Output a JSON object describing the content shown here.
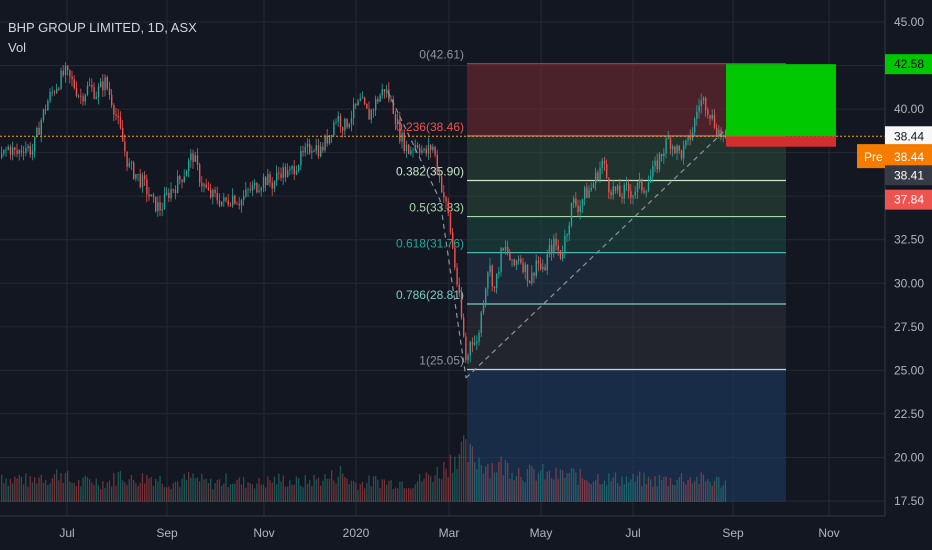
{
  "header": {
    "title": "BHP GROUP LIMITED, 1D, ASX",
    "volume_label": "Vol"
  },
  "colors": {
    "background": "#131722",
    "grid": "#242832",
    "up": "#26a69a",
    "down": "#ef5350",
    "price_line": "#f5a623",
    "target_box": "#00c800",
    "stop_box": "#d32f2f",
    "pre_badge": "#f57c00"
  },
  "chart_data": {
    "type": "candlestick",
    "symbol": "BHP GROUP LIMITED",
    "interval": "1D",
    "exchange": "ASX",
    "x_ticks": [
      "Jul",
      "Sep",
      "Nov",
      "2020",
      "Mar",
      "May",
      "Jul",
      "Sep",
      "Nov"
    ],
    "y_ticks": [
      45.0,
      42.5,
      40.0,
      37.5,
      35.0,
      32.5,
      30.0,
      27.5,
      25.0,
      22.5,
      20.0,
      17.5
    ],
    "ylim": [
      17.3,
      46.0
    ],
    "price_path": [
      [
        0,
        37.2
      ],
      [
        8,
        37.8
      ],
      [
        16,
        37.4
      ],
      [
        24,
        37.9
      ],
      [
        32,
        37.6
      ],
      [
        40,
        39.3
      ],
      [
        48,
        40.6
      ],
      [
        56,
        41.4
      ],
      [
        64,
        42.1
      ],
      [
        72,
        41.5
      ],
      [
        80,
        40.7
      ],
      [
        88,
        41.3
      ],
      [
        96,
        40.9
      ],
      [
        104,
        41.6
      ],
      [
        112,
        40.4
      ],
      [
        120,
        38.6
      ],
      [
        128,
        36.7
      ],
      [
        136,
        36.2
      ],
      [
        144,
        35.6
      ],
      [
        152,
        34.6
      ],
      [
        160,
        34.3
      ],
      [
        168,
        35.2
      ],
      [
        176,
        35.7
      ],
      [
        184,
        36.4
      ],
      [
        192,
        37.4
      ],
      [
        200,
        35.9
      ],
      [
        208,
        35.1
      ],
      [
        216,
        34.9
      ],
      [
        224,
        34.6
      ],
      [
        232,
        35.0
      ],
      [
        240,
        34.7
      ],
      [
        248,
        35.3
      ],
      [
        256,
        35.6
      ],
      [
        264,
        36.0
      ],
      [
        272,
        35.7
      ],
      [
        280,
        36.5
      ],
      [
        288,
        36.2
      ],
      [
        296,
        36.9
      ],
      [
        304,
        37.4
      ],
      [
        312,
        38.0
      ],
      [
        320,
        37.6
      ],
      [
        328,
        38.5
      ],
      [
        336,
        39.6
      ],
      [
        344,
        39.0
      ],
      [
        352,
        39.8
      ],
      [
        360,
        40.4
      ],
      [
        368,
        39.6
      ],
      [
        376,
        40.5
      ],
      [
        384,
        41.2
      ],
      [
        392,
        40.2
      ],
      [
        400,
        38.4
      ],
      [
        408,
        37.6
      ],
      [
        416,
        38.1
      ],
      [
        424,
        37.4
      ],
      [
        432,
        37.9
      ],
      [
        440,
        35.8
      ],
      [
        448,
        33.8
      ],
      [
        456,
        30.2
      ],
      [
        462,
        27.4
      ],
      [
        466,
        25.2
      ],
      [
        470,
        27.0
      ],
      [
        476,
        26.4
      ],
      [
        482,
        28.8
      ],
      [
        488,
        31.2
      ],
      [
        494,
        29.6
      ],
      [
        500,
        31.6
      ],
      [
        506,
        32.0
      ],
      [
        512,
        30.8
      ],
      [
        518,
        31.6
      ],
      [
        524,
        30.9
      ],
      [
        530,
        30.1
      ],
      [
        536,
        31.4
      ],
      [
        542,
        30.5
      ],
      [
        548,
        31.8
      ],
      [
        554,
        32.3
      ],
      [
        560,
        31.6
      ],
      [
        566,
        33.0
      ],
      [
        572,
        34.7
      ],
      [
        578,
        34.4
      ],
      [
        584,
        35.1
      ],
      [
        590,
        35.4
      ],
      [
        596,
        36.2
      ],
      [
        602,
        37.0
      ],
      [
        608,
        35.6
      ],
      [
        614,
        35.3
      ],
      [
        620,
        35.0
      ],
      [
        626,
        35.4
      ],
      [
        632,
        35.2
      ],
      [
        638,
        35.6
      ],
      [
        644,
        35.5
      ],
      [
        650,
        36.1
      ],
      [
        656,
        36.8
      ],
      [
        662,
        37.6
      ],
      [
        668,
        38.3
      ],
      [
        674,
        37.8
      ],
      [
        680,
        37.4
      ],
      [
        686,
        37.9
      ],
      [
        692,
        38.8
      ],
      [
        698,
        40.3
      ],
      [
        704,
        40.5
      ],
      [
        710,
        39.7
      ],
      [
        716,
        38.9
      ],
      [
        722,
        38.4
      ],
      [
        726,
        38.2
      ]
    ],
    "volume_path": [
      [
        0,
        0.55
      ],
      [
        10,
        0.42
      ],
      [
        20,
        0.48
      ],
      [
        30,
        0.38
      ],
      [
        40,
        0.52
      ],
      [
        50,
        0.45
      ],
      [
        60,
        0.6
      ],
      [
        70,
        0.4
      ],
      [
        80,
        0.36
      ],
      [
        90,
        0.44
      ],
      [
        100,
        0.38
      ],
      [
        110,
        0.4
      ],
      [
        120,
        0.55
      ],
      [
        130,
        0.42
      ],
      [
        140,
        0.46
      ],
      [
        150,
        0.5
      ],
      [
        160,
        0.44
      ],
      [
        170,
        0.38
      ],
      [
        180,
        0.4
      ],
      [
        190,
        0.48
      ],
      [
        200,
        0.42
      ],
      [
        210,
        0.36
      ],
      [
        220,
        0.4
      ],
      [
        230,
        0.45
      ],
      [
        240,
        0.38
      ],
      [
        250,
        0.4
      ],
      [
        260,
        0.36
      ],
      [
        270,
        0.42
      ],
      [
        280,
        0.44
      ],
      [
        290,
        0.4
      ],
      [
        300,
        0.38
      ],
      [
        310,
        0.42
      ],
      [
        320,
        0.45
      ],
      [
        330,
        0.48
      ],
      [
        340,
        0.58
      ],
      [
        350,
        0.4
      ],
      [
        360,
        0.36
      ],
      [
        370,
        0.4
      ],
      [
        380,
        0.42
      ],
      [
        390,
        0.38
      ],
      [
        400,
        0.4
      ],
      [
        410,
        0.36
      ],
      [
        420,
        0.44
      ],
      [
        430,
        0.52
      ],
      [
        440,
        0.6
      ],
      [
        450,
        0.8
      ],
      [
        456,
        0.98
      ],
      [
        462,
        1.0
      ],
      [
        468,
        0.9
      ],
      [
        474,
        0.85
      ],
      [
        480,
        0.82
      ],
      [
        490,
        0.7
      ],
      [
        500,
        0.72
      ],
      [
        510,
        0.68
      ],
      [
        520,
        0.6
      ],
      [
        530,
        0.55
      ],
      [
        540,
        0.58
      ],
      [
        550,
        0.5
      ],
      [
        560,
        0.52
      ],
      [
        570,
        0.55
      ],
      [
        580,
        0.48
      ],
      [
        590,
        0.46
      ],
      [
        600,
        0.5
      ],
      [
        610,
        0.44
      ],
      [
        620,
        0.46
      ],
      [
        630,
        0.42
      ],
      [
        640,
        0.45
      ],
      [
        650,
        0.4
      ],
      [
        660,
        0.44
      ],
      [
        670,
        0.42
      ],
      [
        680,
        0.48
      ],
      [
        690,
        0.46
      ],
      [
        700,
        0.44
      ],
      [
        710,
        0.42
      ],
      [
        720,
        0.4
      ],
      [
        726,
        0.38
      ]
    ],
    "fibonacci": [
      {
        "label": "0(42.61)",
        "price": 42.61
      },
      {
        "label": "0.236(38.46)",
        "price": 38.46
      },
      {
        "label": "0.382(35.90)",
        "price": 35.9
      },
      {
        "label": "0.5(33.83)",
        "price": 33.83
      },
      {
        "label": "0.618(31.76)",
        "price": 31.76
      },
      {
        "label": "0.786(28.81)",
        "price": 28.81
      },
      {
        "label": "1(25.05)",
        "price": 25.05
      }
    ],
    "current_price": 38.44,
    "price_badges": [
      {
        "text": "42.58",
        "price": 42.58,
        "style": "green"
      },
      {
        "text": "38.44",
        "price": 38.44,
        "style": "green"
      },
      {
        "text": "38.44",
        "price": 37.3,
        "style": "pre",
        "tag": "Pre"
      },
      {
        "text": "38.41",
        "price": 36.2,
        "style": "gray"
      },
      {
        "text": "37.84",
        "price": 34.8,
        "style": "red"
      }
    ],
    "position": {
      "entry": 38.44,
      "target": 42.58,
      "stop": 37.84
    }
  }
}
